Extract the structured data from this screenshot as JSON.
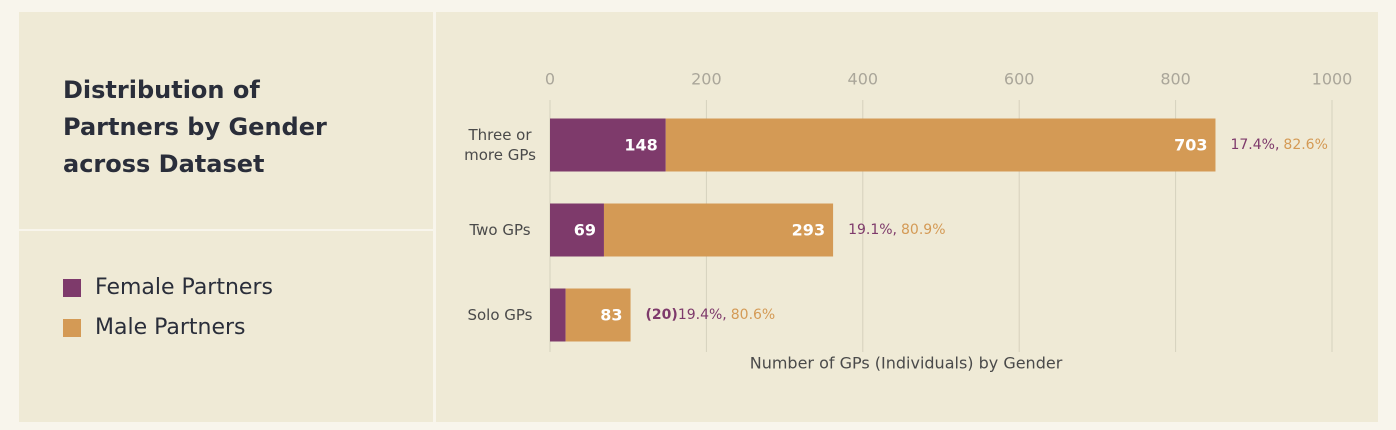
{
  "chart_data": {
    "type": "bar",
    "orientation": "horizontal",
    "stacked": true,
    "title": "Distribution of Partners by Gender across Dataset",
    "categories": [
      "Three or more GPs",
      "Two GPs",
      "Solo GPs"
    ],
    "series": [
      {
        "name": "Female Partners",
        "color": "#7e3a6b",
        "values": [
          148,
          69,
          20
        ],
        "value_labels": [
          "148",
          "69",
          "(20)"
        ],
        "share_labels": [
          "17.4%,",
          "19.1%,",
          "19.4%,"
        ]
      },
      {
        "name": "Male Partners",
        "color": "#d49a55",
        "values": [
          703,
          293,
          83
        ],
        "share_labels": [
          "82.6%",
          "80.9%",
          "80.6%"
        ]
      }
    ],
    "xlim": [
      0,
      1000
    ],
    "xticks": [
      0,
      200,
      400,
      600,
      800,
      1000
    ],
    "xlabel": "Number of GPs (Individuals) by Gender",
    "grid": true
  }
}
